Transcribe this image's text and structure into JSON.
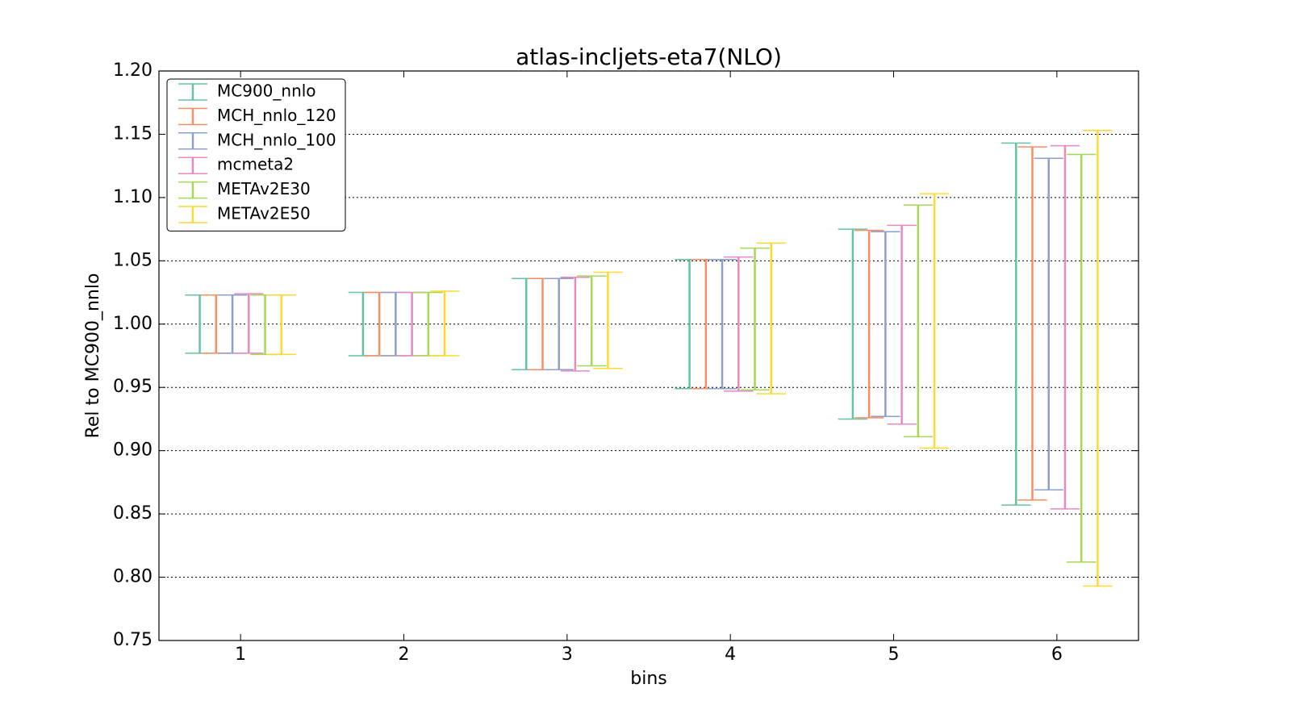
{
  "chart_data": {
    "type": "errorbar",
    "title": "atlas-incljets-eta7(NLO)",
    "xlabel": "bins",
    "ylabel": "Rel to MC900_nnlo",
    "x": [
      1,
      2,
      3,
      4,
      5,
      6
    ],
    "xlim": [
      0.5,
      6.5
    ],
    "xticks": [
      1,
      2,
      3,
      4,
      5,
      6
    ],
    "ylim": [
      0.75,
      1.2
    ],
    "yticks": [
      {
        "value": 0.75,
        "label": "0.75"
      },
      {
        "value": 0.8,
        "label": "0.80"
      },
      {
        "value": 0.85,
        "label": "0.85"
      },
      {
        "value": 0.9,
        "label": "0.90"
      },
      {
        "value": 0.95,
        "label": "0.95"
      },
      {
        "value": 1.0,
        "label": "1.00"
      },
      {
        "value": 1.05,
        "label": "1.05"
      },
      {
        "value": 1.1,
        "label": "1.10"
      },
      {
        "value": 1.15,
        "label": "1.15"
      },
      {
        "value": 1.2,
        "label": "1.20"
      }
    ],
    "grid": true,
    "legend": "upper left",
    "series": [
      {
        "name": "MC900_nnlo",
        "color": "#66c2a5",
        "low": [
          0.977,
          0.975,
          0.964,
          0.949,
          0.925,
          0.857
        ],
        "high": [
          1.023,
          1.025,
          1.036,
          1.051,
          1.075,
          1.143
        ]
      },
      {
        "name": "MCH_nnlo_120",
        "color": "#fc8d62",
        "low": [
          0.977,
          0.975,
          0.964,
          0.949,
          0.926,
          0.861
        ],
        "high": [
          1.023,
          1.025,
          1.036,
          1.051,
          1.074,
          1.14
        ]
      },
      {
        "name": "MCH_nnlo_100",
        "color": "#8da0cb",
        "low": [
          0.977,
          0.975,
          0.964,
          0.949,
          0.927,
          0.869
        ],
        "high": [
          1.023,
          1.025,
          1.036,
          1.051,
          1.073,
          1.131
        ]
      },
      {
        "name": "mcmeta2",
        "color": "#e78ac3",
        "low": [
          0.977,
          0.975,
          0.963,
          0.947,
          0.921,
          0.854
        ],
        "high": [
          1.024,
          1.025,
          1.037,
          1.053,
          1.078,
          1.141
        ]
      },
      {
        "name": "METAv2E30",
        "color": "#a6d854",
        "low": [
          0.976,
          0.975,
          0.967,
          0.948,
          0.911,
          0.812
        ],
        "high": [
          1.023,
          1.025,
          1.038,
          1.06,
          1.094,
          1.134
        ]
      },
      {
        "name": "METAv2E50",
        "color": "#ffd92f",
        "low": [
          0.976,
          0.975,
          0.965,
          0.945,
          0.902,
          0.793
        ],
        "high": [
          1.023,
          1.026,
          1.041,
          1.064,
          1.103,
          1.153
        ]
      }
    ]
  }
}
